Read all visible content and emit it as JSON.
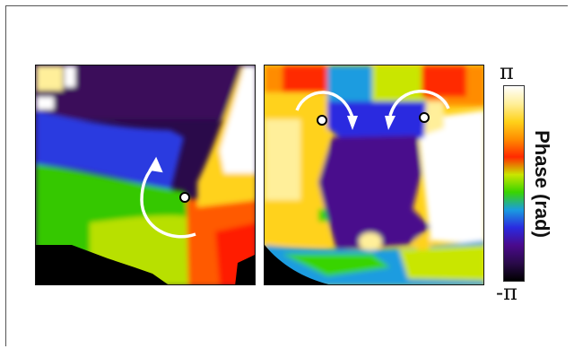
{
  "colorbar": {
    "max_label": "π",
    "min_label": "-π",
    "title": "Phase (rad)",
    "colors": [
      "#ffffff",
      "#ffef9a",
      "#ffd21a",
      "#ff8c00",
      "#ff2a00",
      "#c9e600",
      "#39d400",
      "#1a9ce0",
      "#2a2ae0",
      "#4a0a8c",
      "#2a0a4a",
      "#000000"
    ]
  },
  "panels": [
    {
      "name": "left",
      "rotation": "counterclockwise",
      "singularities": 1
    },
    {
      "name": "right",
      "rotation": "clockwise-pair",
      "singularities": 2
    }
  ]
}
